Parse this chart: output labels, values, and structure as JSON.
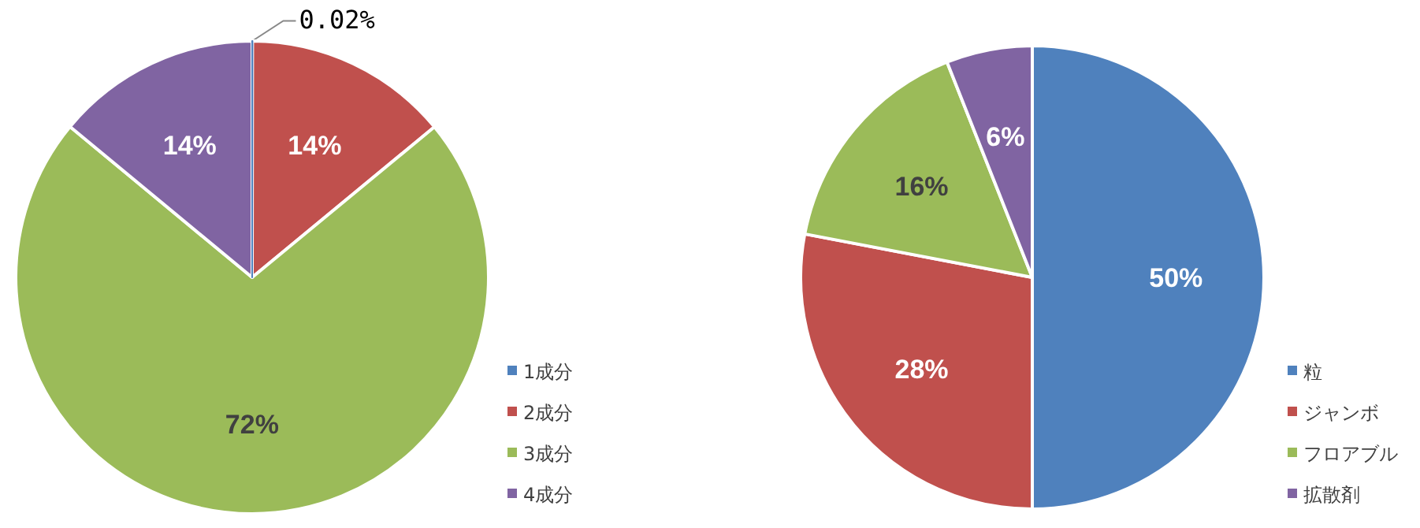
{
  "chart_data": [
    {
      "type": "pie",
      "categories": [
        "1成分",
        "2成分",
        "3成分",
        "4成分"
      ],
      "values": [
        0.02,
        14,
        72,
        14
      ],
      "colors": [
        "#4f81bd",
        "#c0504d",
        "#9bbb59",
        "#8064a2"
      ],
      "value_labels": [
        "0.02%",
        "14%",
        "72%",
        "14%"
      ],
      "legend": "bottom right"
    },
    {
      "type": "pie",
      "categories": [
        "粒",
        "ジャンボ",
        "フロアブル",
        "拡散剤"
      ],
      "values": [
        50,
        28,
        16,
        6
      ],
      "colors": [
        "#4f81bd",
        "#c0504d",
        "#9bbb59",
        "#8064a2"
      ],
      "value_labels": [
        "50%",
        "28%",
        "16%",
        "6%"
      ],
      "legend": "bottom right"
    }
  ]
}
